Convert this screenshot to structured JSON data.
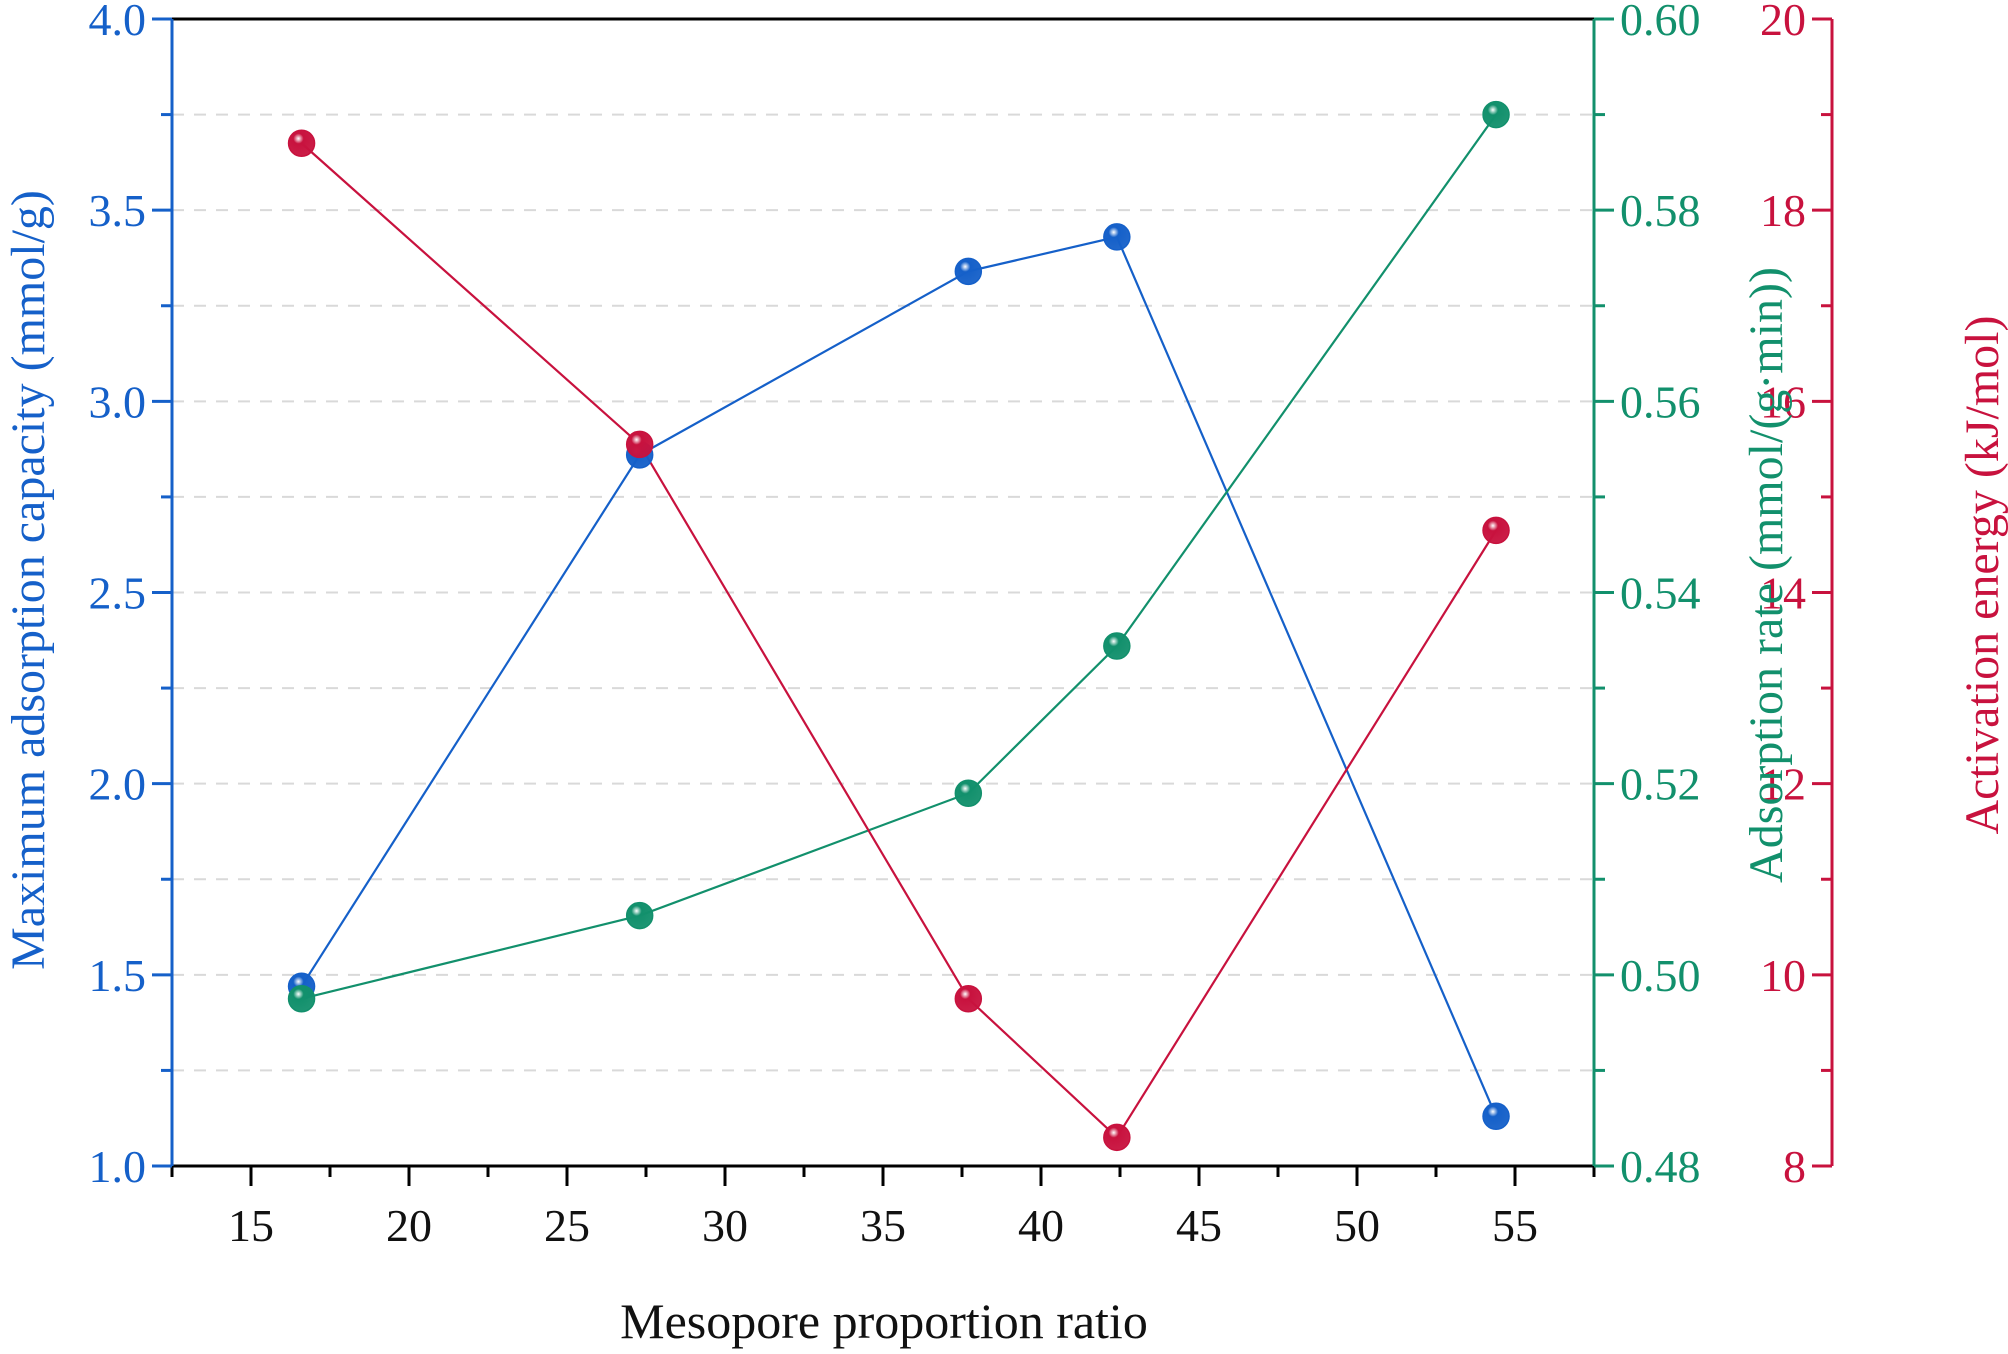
{
  "chart_data": {
    "type": "line",
    "xlabel": "Mesopore proportion ratio",
    "xlim": [
      12.5,
      57.5
    ],
    "xticks": [
      15,
      20,
      25,
      30,
      35,
      40,
      45,
      50,
      55
    ],
    "grid": "horizontal dashed",
    "axes": [
      {
        "id": "capacity",
        "side": "left",
        "label": "Maximum adsorption capacity (mmol/g)",
        "color": "#1560c9",
        "ylim": [
          1.0,
          4.0
        ],
        "ticks": [
          1.0,
          1.5,
          2.0,
          2.5,
          3.0,
          3.5,
          4.0
        ],
        "tick_labels": [
          "1.0",
          "1.5",
          "2.0",
          "2.5",
          "3.0",
          "3.5",
          "4.0"
        ]
      },
      {
        "id": "rate",
        "side": "right",
        "label": "Adsorption rate (mmol/(g·min))",
        "color": "#12906c",
        "ylim": [
          0.48,
          0.6
        ],
        "ticks": [
          0.48,
          0.5,
          0.52,
          0.54,
          0.56,
          0.58,
          0.6
        ],
        "tick_labels": [
          "0.48",
          "0.50",
          "0.52",
          "0.54",
          "0.56",
          "0.58",
          "0.60"
        ]
      },
      {
        "id": "energy",
        "side": "right-outer",
        "label": "Activation energy (kJ/mol)",
        "color": "#c8123e",
        "ylim": [
          8,
          20
        ],
        "ticks": [
          8,
          10,
          12,
          14,
          16,
          18,
          20
        ],
        "tick_labels": [
          "8",
          "10",
          "12",
          "14",
          "16",
          "18",
          "20"
        ]
      }
    ],
    "series": [
      {
        "axis": "capacity",
        "color": "#1560c9",
        "x": [
          16.6,
          27.3,
          37.7,
          42.4,
          54.4
        ],
        "y": [
          1.47,
          2.86,
          3.34,
          3.43,
          1.13
        ]
      },
      {
        "axis": "rate",
        "color": "#12906c",
        "x": [
          16.6,
          27.3,
          37.7,
          42.4,
          54.4
        ],
        "y": [
          0.4975,
          0.5062,
          0.519,
          0.5344,
          0.59
        ]
      },
      {
        "axis": "energy",
        "color": "#c8123e",
        "x": [
          16.6,
          27.3,
          37.7,
          42.4,
          54.4
        ],
        "y": [
          18.7,
          15.55,
          9.75,
          8.3,
          14.65
        ]
      }
    ]
  }
}
